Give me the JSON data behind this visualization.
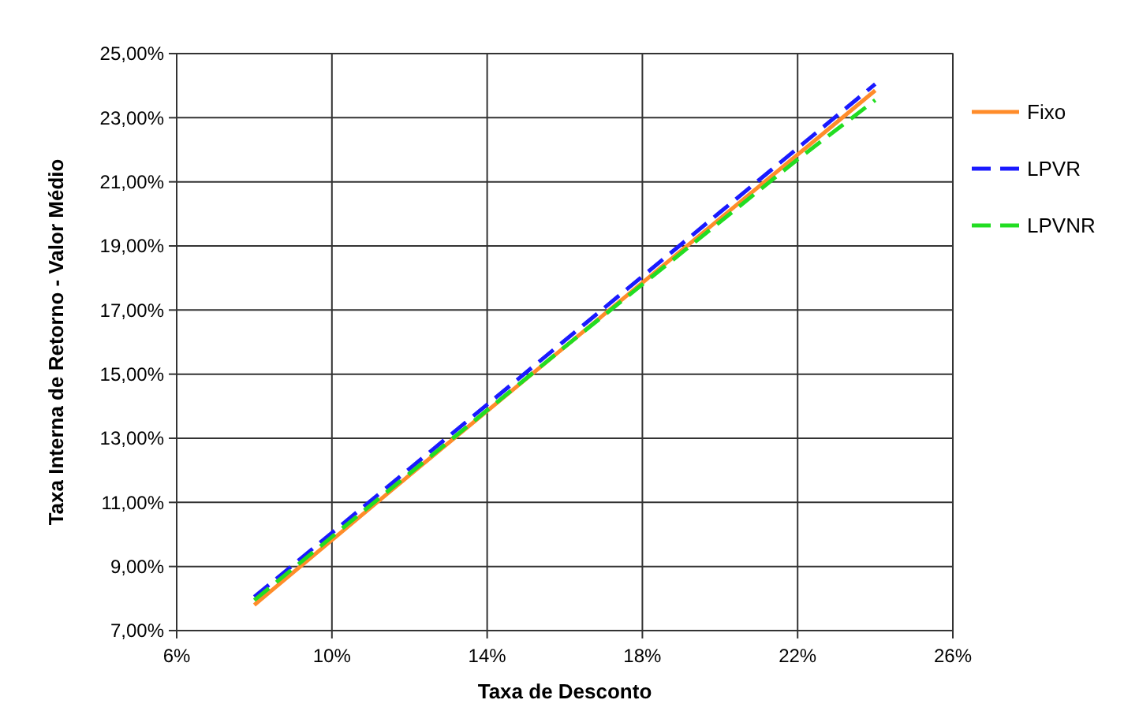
{
  "chart_data": {
    "type": "line",
    "xlabel": "Taxa de Desconto",
    "ylabel": "Taxa Interna de Retorno - Valor Médio",
    "xlim": [
      6,
      26
    ],
    "xticks": [
      {
        "value": 6,
        "label": "6%"
      },
      {
        "value": 10,
        "label": "10%"
      },
      {
        "value": 14,
        "label": "14%"
      },
      {
        "value": 18,
        "label": "18%"
      },
      {
        "value": 22,
        "label": "22%"
      },
      {
        "value": 26,
        "label": "26%"
      }
    ],
    "ylim": [
      7,
      25
    ],
    "yticks": [
      {
        "value": 7,
        "label": "7,00%"
      },
      {
        "value": 9,
        "label": "9,00%"
      },
      {
        "value": 11,
        "label": "11,00%"
      },
      {
        "value": 13,
        "label": "13,00%"
      },
      {
        "value": 15,
        "label": "15,00%"
      },
      {
        "value": 17,
        "label": "17,00%"
      },
      {
        "value": 19,
        "label": "19,00%"
      },
      {
        "value": 21,
        "label": "21,00%"
      },
      {
        "value": 23,
        "label": "23,00%"
      },
      {
        "value": 25,
        "label": "25,00%"
      }
    ],
    "grid": true,
    "legend": "right",
    "marker": "none",
    "series": [
      {
        "name": "Fixo",
        "color": "#ff8c2a",
        "line_style": "solid",
        "x": [
          8,
          12,
          16,
          20,
          24
        ],
        "values": [
          7.8,
          11.85,
          15.85,
          19.85,
          23.85
        ]
      },
      {
        "name": "LPVR",
        "color": "#1a1aff",
        "line_style": "dashed",
        "x": [
          8,
          12,
          16,
          20,
          24
        ],
        "values": [
          8.05,
          12.05,
          16.05,
          20.05,
          24.05
        ]
      },
      {
        "name": "LPVNR",
        "color": "#22dd22",
        "line_style": "dashed",
        "x": [
          8,
          12,
          16,
          20,
          22,
          24
        ],
        "values": [
          7.95,
          11.9,
          15.85,
          19.75,
          21.7,
          23.55
        ]
      }
    ]
  }
}
